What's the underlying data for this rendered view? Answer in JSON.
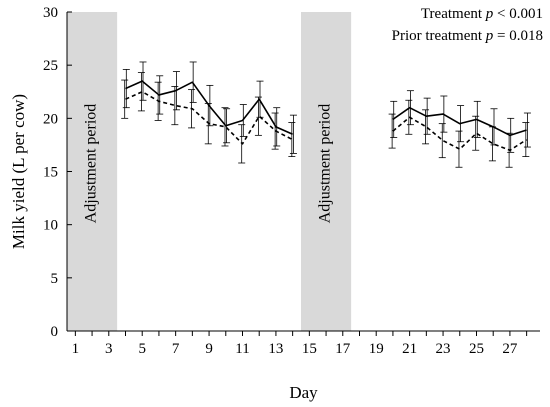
{
  "chart_data": {
    "type": "line",
    "xlabel": "Day",
    "ylabel": "Milk yield (L per cow)",
    "xlim": [
      0.5,
      28.8
    ],
    "ylim": [
      0,
      30
    ],
    "xticks": [
      1,
      3,
      5,
      7,
      9,
      11,
      13,
      15,
      17,
      19,
      21,
      23,
      25,
      27
    ],
    "yticks": [
      0,
      5,
      10,
      15,
      20,
      25,
      30
    ],
    "grid": false,
    "shaded_periods": [
      {
        "label": "Adjustment period",
        "x_range": [
          0.5,
          3.5
        ]
      },
      {
        "label": "Adjustment period",
        "x_range": [
          14.5,
          17.5
        ]
      }
    ],
    "annotations": [
      {
        "prefix": "Treatment ",
        "italic": "p",
        "suffix": " < 0.001"
      },
      {
        "prefix": "Prior treatment ",
        "italic": "p",
        "suffix": " = 0.018"
      }
    ],
    "series": [
      {
        "style": "solid",
        "segments": [
          {
            "x": [
              4,
              5,
              6,
              7,
              8,
              9,
              10,
              11,
              12,
              13,
              14
            ],
            "y": [
              22.8,
              23.5,
              22.2,
              22.6,
              23.4,
              21.2,
              19.3,
              19.8,
              21.8,
              19.2,
              18.5
            ],
            "err": [
              1.8,
              1.8,
              1.8,
              1.8,
              1.9,
              1.9,
              1.6,
              1.5,
              1.7,
              1.8,
              1.8
            ]
          },
          {
            "x": [
              20,
              21,
              22,
              23,
              24,
              25,
              26,
              27,
              28
            ],
            "y": [
              19.9,
              21.0,
              20.2,
              20.4,
              19.5,
              19.9,
              19.2,
              18.4,
              18.9
            ],
            "err": [
              1.7,
              1.6,
              1.7,
              1.7,
              1.7,
              1.7,
              1.7,
              1.6,
              1.6
            ]
          }
        ]
      },
      {
        "style": "dashed",
        "segments": [
          {
            "x": [
              4,
              5,
              6,
              7,
              8,
              9,
              10,
              11,
              12,
              13,
              14
            ],
            "y": [
              21.8,
              22.5,
              21.6,
              21.2,
              20.9,
              19.5,
              19.2,
              17.6,
              20.2,
              18.8,
              18.0
            ],
            "err": [
              1.8,
              1.8,
              1.8,
              1.8,
              1.8,
              1.9,
              1.8,
              1.8,
              1.8,
              1.7,
              1.6
            ]
          },
          {
            "x": [
              20,
              21,
              22,
              23,
              24,
              25,
              26,
              27,
              28
            ],
            "y": [
              18.8,
              20.1,
              19.2,
              17.9,
              17.1,
              18.6,
              17.6,
              17.0,
              18.0
            ],
            "err": [
              1.6,
              1.6,
              1.6,
              1.6,
              1.7,
              1.6,
              1.6,
              1.6,
              1.6
            ]
          }
        ]
      }
    ]
  }
}
